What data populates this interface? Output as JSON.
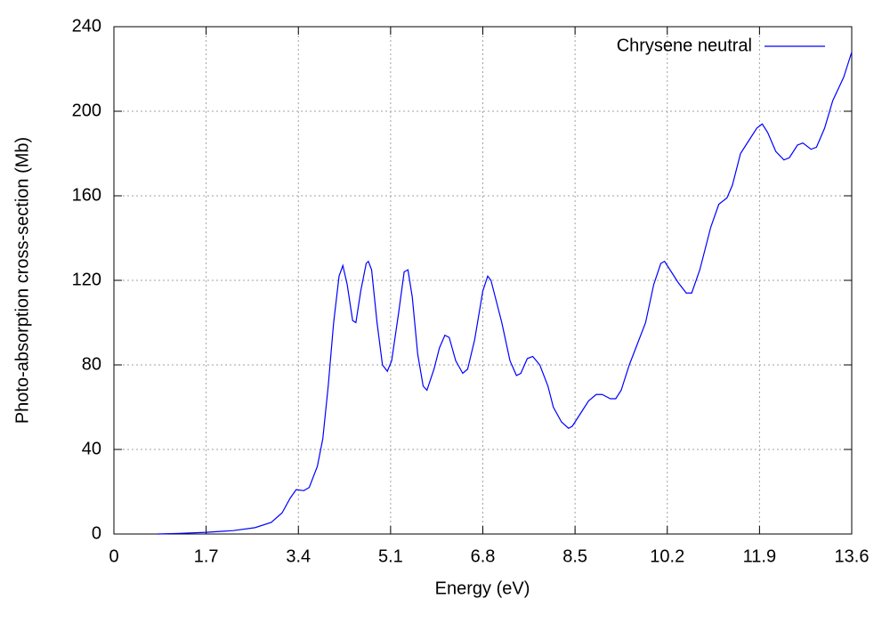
{
  "chart_data": {
    "type": "line",
    "xlabel": "Energy (eV)",
    "ylabel": "Photo-absorption cross-section (Mb)",
    "xlim": [
      0,
      13.6
    ],
    "ylim": [
      0,
      240
    ],
    "xticks": [
      0,
      1.7,
      3.4,
      5.1,
      6.8,
      8.5,
      10.2,
      11.9,
      13.6
    ],
    "yticks": [
      0,
      40,
      80,
      120,
      160,
      200,
      240
    ],
    "grid": true,
    "legend": "top right",
    "series": [
      {
        "name": "Chrysene neutral",
        "color": "#0000ff",
        "x": [
          0.8,
          1.2,
          1.7,
          2.2,
          2.6,
          2.9,
          3.1,
          3.25,
          3.36,
          3.5,
          3.6,
          3.75,
          3.85,
          3.95,
          4.05,
          4.15,
          4.22,
          4.3,
          4.4,
          4.46,
          4.55,
          4.65,
          4.69,
          4.75,
          4.85,
          4.95,
          5.04,
          5.12,
          5.25,
          5.35,
          5.42,
          5.5,
          5.6,
          5.7,
          5.77,
          5.9,
          6.0,
          6.1,
          6.18,
          6.3,
          6.43,
          6.52,
          6.65,
          6.8,
          6.89,
          6.95,
          7.15,
          7.3,
          7.42,
          7.5,
          7.62,
          7.72,
          7.85,
          8.0,
          8.1,
          8.25,
          8.38,
          8.45,
          8.6,
          8.75,
          8.89,
          9.0,
          9.15,
          9.25,
          9.35,
          9.5,
          9.65,
          9.8,
          9.95,
          10.08,
          10.15,
          10.25,
          10.4,
          10.55,
          10.65,
          10.8,
          11.0,
          11.15,
          11.3,
          11.4,
          11.55,
          11.7,
          11.85,
          11.95,
          12.05,
          12.2,
          12.35,
          12.45,
          12.6,
          12.7,
          12.85,
          12.95,
          13.1,
          13.25,
          13.45,
          13.6
        ],
        "values": [
          0,
          0.3,
          0.8,
          1.6,
          3,
          5.5,
          10,
          17,
          21,
          20.5,
          22,
          32,
          45,
          70,
          100,
          122,
          127,
          118,
          101,
          100,
          115,
          128,
          129,
          125,
          100,
          80,
          77,
          82,
          105,
          124,
          125,
          112,
          85,
          70,
          68,
          78,
          88,
          94,
          93,
          82,
          76,
          78,
          92,
          115,
          122,
          120,
          100,
          82,
          75,
          76,
          83,
          84,
          80,
          70,
          60,
          53,
          50,
          51,
          57,
          63,
          66,
          66,
          64,
          64,
          68,
          80,
          90,
          100,
          118,
          128,
          129,
          125,
          119,
          114,
          114,
          125,
          145,
          156,
          159,
          165,
          180,
          186,
          192,
          194,
          190,
          181,
          177,
          178,
          184,
          185,
          182,
          183,
          192,
          205,
          216,
          228
        ]
      }
    ]
  }
}
